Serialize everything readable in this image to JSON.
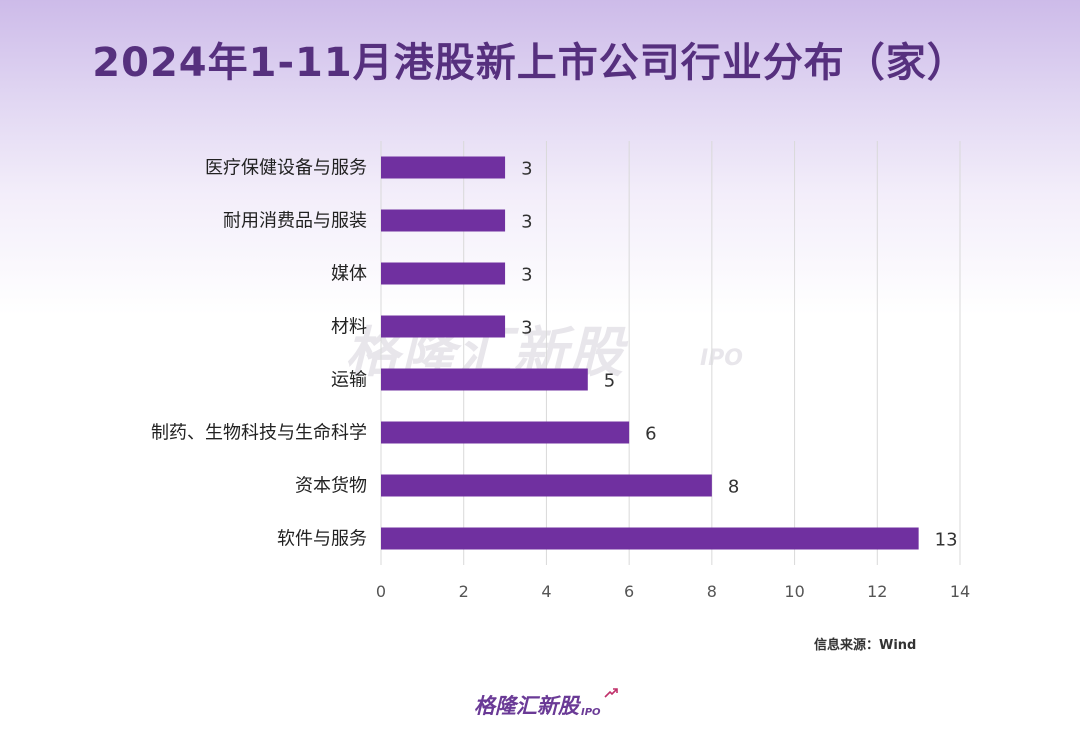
{
  "title": "2024年1-11月港股新上市公司行业分布（家）",
  "source": "信息来源：Wind",
  "watermark": {
    "brand": "格隆汇新股",
    "tag": "IPO"
  },
  "colors": {
    "bar": "#7030a0",
    "title": "#56307e",
    "grid": "#d9d9d9"
  },
  "chart_data": {
    "type": "bar",
    "orientation": "horizontal",
    "title": "2024年1-11月港股新上市公司行业分布（家）",
    "categories": [
      "医疗保健设备与服务",
      "耐用消费品与服装",
      "媒体",
      "材料",
      "运输",
      "制药、生物科技与生命科学",
      "资本货物",
      "软件与服务"
    ],
    "values": [
      3,
      3,
      3,
      3,
      5,
      6,
      8,
      13
    ],
    "xlim": [
      0,
      14
    ],
    "xticks": [
      0,
      2,
      4,
      6,
      8,
      10,
      12,
      14
    ],
    "grid": true,
    "data_labels": true,
    "xlabel": "",
    "ylabel": ""
  }
}
